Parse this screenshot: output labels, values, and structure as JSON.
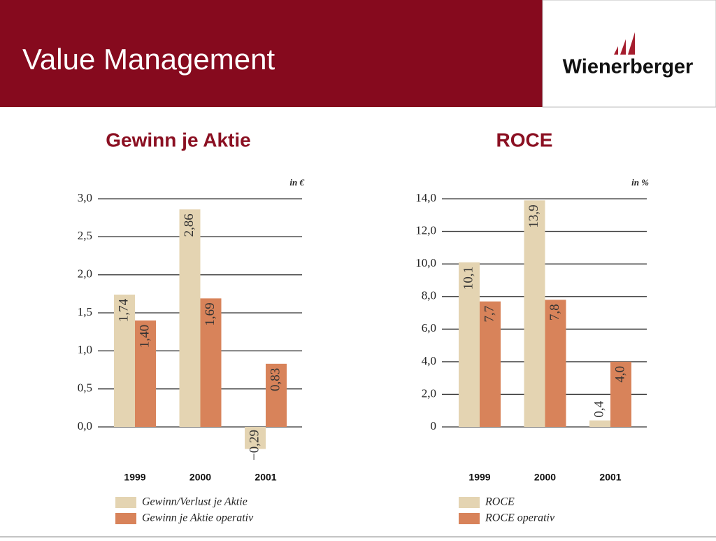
{
  "header": {
    "title": "Value Management",
    "logo": "Wienerberger"
  },
  "chart_data": [
    {
      "type": "bar",
      "title": "Gewinn je Aktie",
      "unit": "in €",
      "categories": [
        "1999",
        "2000",
        "2001"
      ],
      "series": [
        {
          "name": "Gewinn/Verlust je Aktie",
          "color": "#e4d4b2",
          "values": [
            1.74,
            2.86,
            -0.29
          ],
          "value_labels": [
            "1,74",
            "2,86",
            "−0,29"
          ]
        },
        {
          "name": "Gewinn je Aktie operativ",
          "color": "#d8835a",
          "values": [
            1.4,
            1.69,
            0.83
          ],
          "value_labels": [
            "1,40",
            "1,69",
            "0,83"
          ]
        }
      ],
      "ylim": [
        -0.3,
        3.0
      ],
      "yticks": [
        {
          "value": 0,
          "label": "0,0"
        },
        {
          "value": 0.5,
          "label": "0,5"
        },
        {
          "value": 1,
          "label": "1,0"
        },
        {
          "value": 1.5,
          "label": "1,5"
        },
        {
          "value": 2,
          "label": "2,0"
        },
        {
          "value": 2.5,
          "label": "2,5"
        },
        {
          "value": 3,
          "label": "3,0"
        }
      ],
      "grid": true
    },
    {
      "type": "bar",
      "title": "ROCE",
      "unit": "in %",
      "categories": [
        "1999",
        "2000",
        "2001"
      ],
      "series": [
        {
          "name": "ROCE",
          "color": "#e4d4b2",
          "values": [
            10.1,
            13.9,
            0.4
          ],
          "value_labels": [
            "10,1",
            "13,9",
            "0,4"
          ]
        },
        {
          "name": "ROCE operativ",
          "color": "#d8835a",
          "values": [
            7.7,
            7.8,
            4.0
          ],
          "value_labels": [
            "7,7",
            "7,8",
            "4,0"
          ]
        }
      ],
      "ylim": [
        0,
        14
      ],
      "yticks": [
        0,
        {
          "value": 2,
          "label": "2,0"
        },
        {
          "value": 4,
          "label": "4,0"
        },
        {
          "value": 6,
          "label": "6,0"
        },
        {
          "value": 8,
          "label": "8,0"
        },
        {
          "value": 10,
          "label": "10,0"
        },
        {
          "value": 12,
          "label": "12,0"
        },
        {
          "value": 14,
          "label": "14,0"
        }
      ],
      "grid": true
    }
  ]
}
